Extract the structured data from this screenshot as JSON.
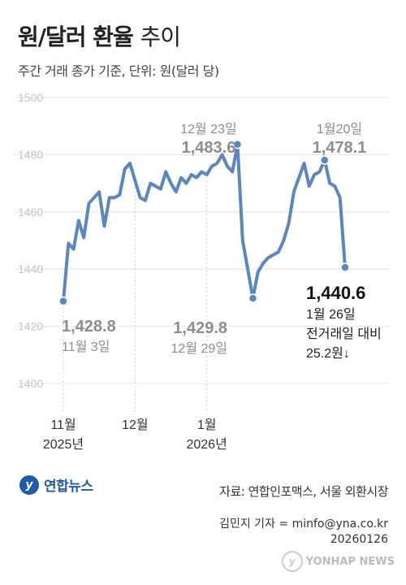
{
  "header": {
    "title_bold": "원/달러 환율",
    "title_light": "추이",
    "subtitle": "주간 거래 종가 기준, 단위: 원(달러 당)"
  },
  "chart_data": {
    "type": "line",
    "title": "원/달러 환율 추이",
    "unit": "원(달러 당)",
    "ylim": [
      1400,
      1500
    ],
    "yticks": [
      1400,
      1420,
      1440,
      1460,
      1480,
      1500
    ],
    "grid": true,
    "color": "#5b86c0",
    "x_tick_labels": [
      {
        "label": "11월",
        "sub": "2025년",
        "idx": 0
      },
      {
        "label": "12월",
        "sub": "",
        "idx": 14
      },
      {
        "label": "1월",
        "sub": "2026년",
        "idx": 28
      }
    ],
    "series": [
      {
        "values": [
          1428.8,
          1449,
          1447,
          1457,
          1451,
          1463,
          1465,
          1467,
          1455,
          1465,
          1465,
          1466,
          1475,
          1477,
          1471,
          1465,
          1464,
          1470,
          1469,
          1468,
          1474,
          1470,
          1467,
          1472,
          1470,
          1473,
          1472,
          1474,
          1473,
          1476,
          1477,
          1480,
          1476,
          1474,
          1483.6,
          1450,
          1440,
          1429.8,
          1439,
          1442,
          1444,
          1445,
          1446,
          1450,
          1456,
          1467,
          1472,
          1477,
          1469,
          1473,
          1474,
          1478.1,
          1470,
          1469,
          1465,
          1440.6
        ]
      }
    ],
    "annotations": [
      {
        "idx": 0,
        "value": "1,428.8",
        "date": "11월 3일",
        "style": "gray"
      },
      {
        "idx": 34,
        "value": "1,483.6",
        "date": "12월 23일",
        "style": "gray"
      },
      {
        "idx": 37,
        "value": "1,429.8",
        "date": "12월 29일",
        "style": "gray"
      },
      {
        "idx": 51,
        "value": "1,478.1",
        "date": "1월20일",
        "style": "gray"
      },
      {
        "idx": 55,
        "value": "1,440.6",
        "date": "1월 26일",
        "extra1": "전거래일 대비",
        "extra2": "25.2원↓",
        "style": "dark"
      }
    ]
  },
  "footer": {
    "logo_text": "연합뉴스",
    "source": "자료: 연합인포맥스, 서울 외환시장",
    "reporter": "김민지 기자 = minfo@yna.co.kr",
    "date": "20260126",
    "watermark": "YONHAP NEWS"
  }
}
